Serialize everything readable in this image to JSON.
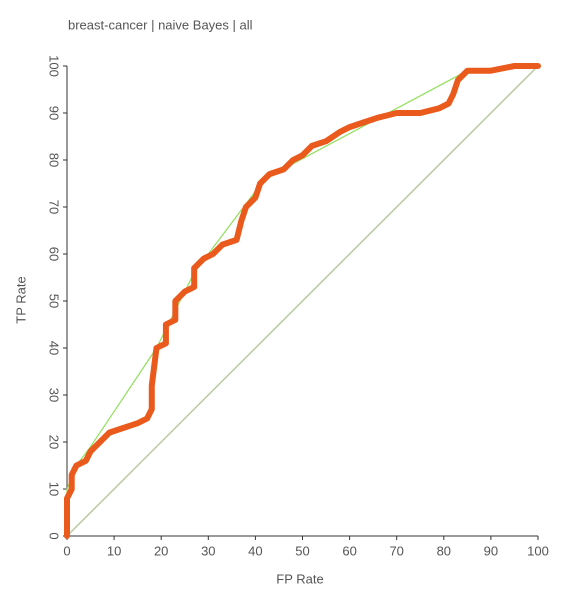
{
  "chart_data": {
    "type": "line",
    "title": "breast-cancer | naive Bayes | all",
    "x_label": "FP Rate",
    "y_label": "TP Rate",
    "xlim": [
      0,
      100
    ],
    "ylim": [
      0,
      100
    ],
    "xticks": [
      0,
      10,
      20,
      30,
      40,
      50,
      60,
      70,
      80,
      90,
      100
    ],
    "yticks": [
      0,
      10,
      20,
      30,
      40,
      50,
      60,
      70,
      80,
      90,
      100
    ],
    "series": [
      {
        "color": "#b9c9a3",
        "width": 1.5,
        "x": [
          0,
          100
        ],
        "values": [
          0,
          100
        ]
      },
      {
        "color": "#8fe05a",
        "width": 1.2,
        "x": [
          0,
          0,
          2,
          5,
          19,
          27,
          42,
          85,
          100
        ],
        "values": [
          0,
          10,
          15,
          19,
          40,
          56,
          76,
          99,
          100
        ]
      },
      {
        "color": "#ea5a1c",
        "width": 6,
        "x": [
          0,
          0,
          1,
          1,
          2,
          4,
          5,
          7,
          9,
          12,
          15,
          17,
          18,
          18,
          19,
          21,
          21,
          23,
          23,
          25,
          27,
          27,
          29,
          31,
          33,
          36,
          37,
          38,
          40,
          41,
          43,
          46,
          48,
          50,
          52,
          55,
          58,
          60,
          63,
          66,
          70,
          75,
          79,
          81,
          82,
          83,
          85,
          90,
          95,
          100
        ],
        "values": [
          0,
          8,
          10,
          13,
          15,
          16,
          18,
          20,
          22,
          23,
          24,
          25,
          27,
          32,
          40,
          41,
          45,
          46,
          50,
          52,
          53,
          57,
          59,
          60,
          62,
          63,
          67,
          70,
          72,
          75,
          77,
          78,
          80,
          81,
          83,
          84,
          86,
          87,
          88,
          89,
          90,
          90,
          91,
          92,
          94,
          97,
          99,
          99,
          100,
          100
        ]
      }
    ]
  }
}
